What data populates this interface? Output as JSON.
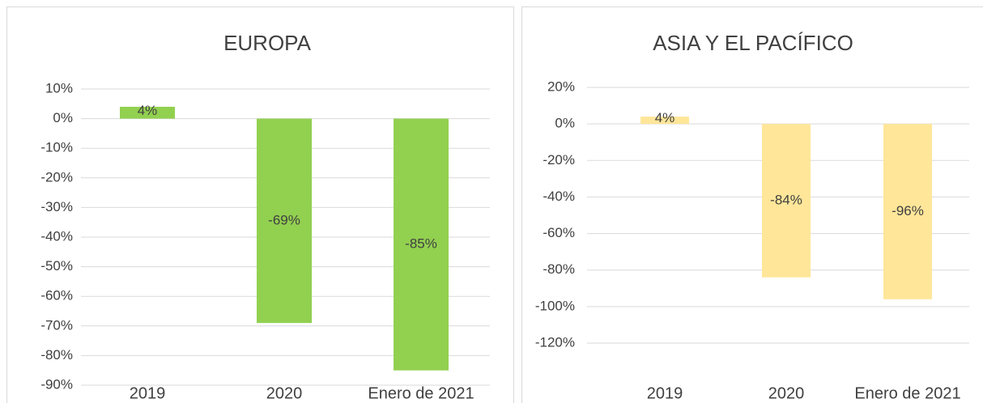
{
  "chart_data": [
    {
      "type": "bar",
      "title": "EUROPA",
      "categories": [
        "2019",
        "2020",
        "Enero de 2021"
      ],
      "values": [
        4,
        -69,
        -85
      ],
      "value_labels": [
        "4%",
        "-69%",
        "-85%"
      ],
      "color": "#92d050",
      "ylim": [
        -90,
        10
      ],
      "yticks": [
        {
          "value": 10,
          "label": "10%"
        },
        {
          "value": 0,
          "label": "0%"
        },
        {
          "value": -10,
          "label": "-10%"
        },
        {
          "value": -20,
          "label": "-20%"
        },
        {
          "value": -30,
          "label": "-30%"
        },
        {
          "value": -40,
          "label": "-40%"
        },
        {
          "value": -50,
          "label": "-50%"
        },
        {
          "value": -60,
          "label": "-60%"
        },
        {
          "value": -70,
          "label": "-70%"
        },
        {
          "value": -80,
          "label": "-80%"
        },
        {
          "value": -90,
          "label": "-90%"
        }
      ],
      "grid": true
    },
    {
      "type": "bar",
      "title": "ASIA Y EL PACÍFICO",
      "categories": [
        "2019",
        "2020",
        "Enero de 2021"
      ],
      "values": [
        4,
        -84,
        -96
      ],
      "value_labels": [
        "4%",
        "-84%",
        "-96%"
      ],
      "color": "#ffe699",
      "ylim": [
        -120,
        20
      ],
      "yticks": [
        {
          "value": 20,
          "label": "20%"
        },
        {
          "value": 0,
          "label": "0%"
        },
        {
          "value": -20,
          "label": "-20%"
        },
        {
          "value": -40,
          "label": "-40%"
        },
        {
          "value": -60,
          "label": "-60%"
        },
        {
          "value": -80,
          "label": "-80%"
        },
        {
          "value": -100,
          "label": "-100%"
        },
        {
          "value": -120,
          "label": "-120%"
        }
      ],
      "grid": true
    }
  ]
}
